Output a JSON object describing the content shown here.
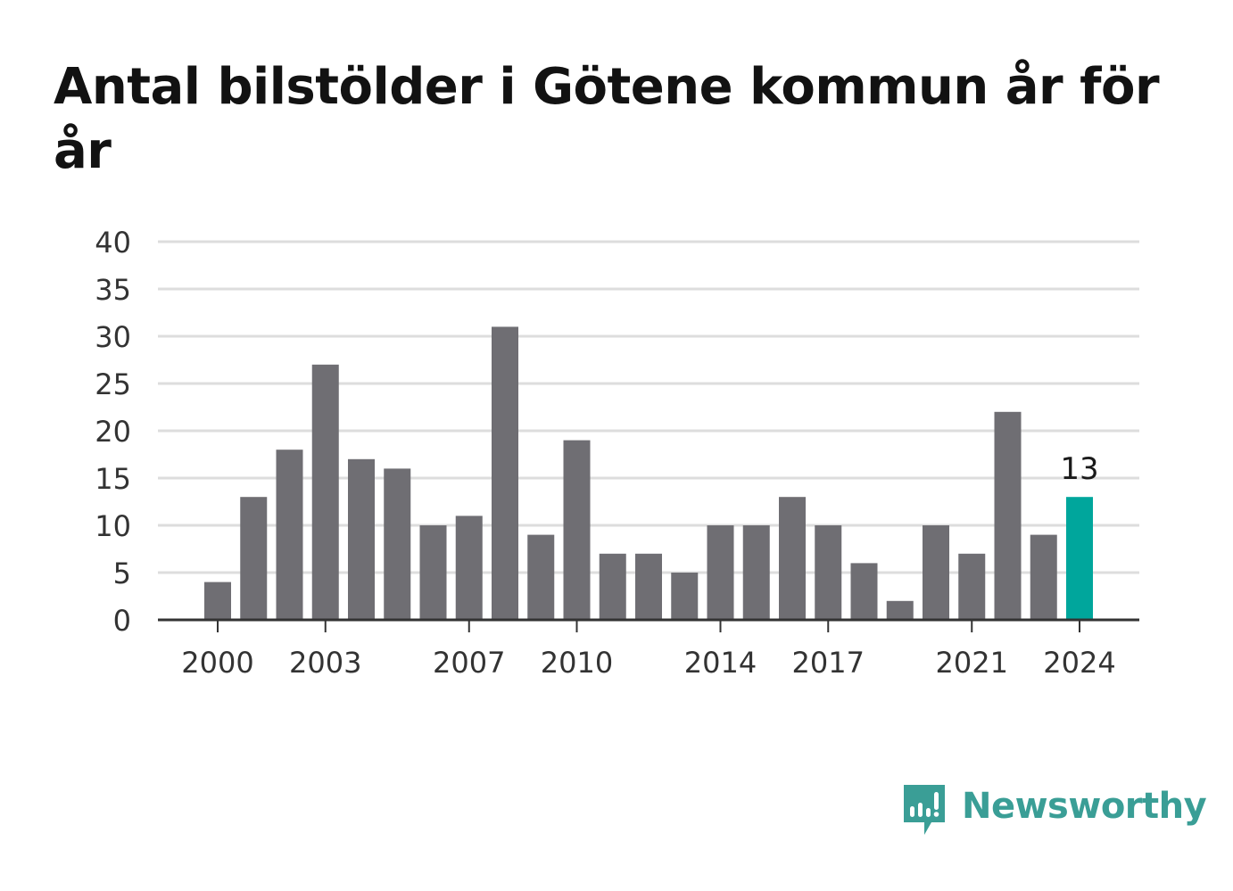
{
  "title": "Antal bilstölder i Götene kommun år för år",
  "colors": {
    "bar": "#6f6e73",
    "highlight": "#00a69c",
    "grid": "#dddddd",
    "axis": "#333333",
    "brand": "#3a9e96"
  },
  "brand": {
    "name": "Newsworthy",
    "icon": "bar-chart-speech-bubble-icon"
  },
  "chart_data": {
    "type": "bar",
    "title": "Antal bilstölder i Götene kommun år för år",
    "xlabel": "",
    "ylabel": "",
    "ylim": [
      0,
      40
    ],
    "yticks": [
      0,
      5,
      10,
      15,
      20,
      25,
      30,
      35,
      40
    ],
    "grid": true,
    "categories": [
      2000,
      2001,
      2002,
      2003,
      2004,
      2005,
      2006,
      2007,
      2008,
      2009,
      2010,
      2011,
      2012,
      2013,
      2014,
      2015,
      2016,
      2017,
      2018,
      2019,
      2020,
      2021,
      2022,
      2023,
      2024
    ],
    "values": [
      4,
      13,
      18,
      27,
      17,
      16,
      10,
      11,
      31,
      9,
      19,
      7,
      7,
      5,
      10,
      10,
      13,
      10,
      6,
      2,
      10,
      7,
      22,
      9,
      13
    ],
    "xtick_labels": [
      "2000",
      "2003",
      "2007",
      "2010",
      "2014",
      "2017",
      "2021",
      "2024"
    ],
    "highlight_category": 2024,
    "highlight_label": "13"
  }
}
